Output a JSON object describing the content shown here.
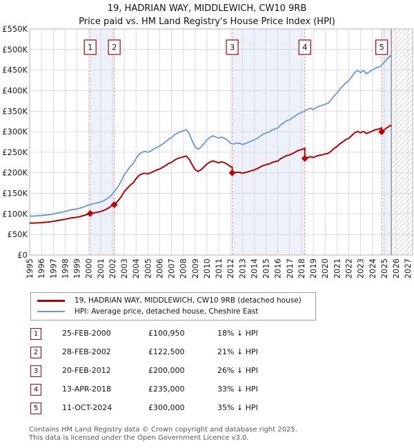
{
  "chart_data": {
    "type": "line",
    "title": "19, HADRIAN WAY, MIDDLEWICH, CW10 9RB",
    "subtitle": "Price paid vs. HM Land Registry's House Price Index (HPI)",
    "xlim": [
      1995,
      2027.4
    ],
    "ylim": [
      0,
      550
    ],
    "grid": true,
    "y_ticks": {
      "values": [
        0,
        50,
        100,
        150,
        200,
        250,
        300,
        350,
        400,
        450,
        500,
        550
      ],
      "labels": [
        "£0",
        "£50K",
        "£100K",
        "£150K",
        "£200K",
        "£250K",
        "£300K",
        "£350K",
        "£400K",
        "£450K",
        "£500K",
        "£550K"
      ]
    },
    "x_ticks": [
      "1995",
      "1996",
      "1997",
      "1998",
      "1999",
      "2000",
      "2001",
      "2002",
      "2003",
      "2004",
      "2005",
      "2006",
      "2007",
      "2008",
      "2009",
      "2010",
      "2011",
      "2012",
      "2013",
      "2014",
      "2015",
      "2016",
      "2017",
      "2018",
      "2019",
      "2020",
      "2021",
      "2022",
      "2023",
      "2024",
      "2025",
      "2026",
      "2027"
    ],
    "legend": [
      "19, HADRIAN WAY, MIDDLEWICH, CW10 9RB (detached house)",
      "HPI: Average price, detached house, Cheshire East"
    ],
    "colors": {
      "property_line": "#b40000",
      "marker": "#c00000",
      "hpi_line": "#6699cc",
      "sale_dash": "#f07d7d",
      "band_fill": "#edf2fa",
      "grid_line": "#d0d0d0",
      "plot_border": "#b3b3b3",
      "hatch_line": "#cccccc",
      "future_edge": "#8a8a8a",
      "number_box_border": "#aa0000"
    },
    "hpi_series": {
      "name": "HPI: Average price, detached house, Cheshire East",
      "units": "GBP_thousands",
      "points": [
        [
          1995.0,
          95
        ],
        [
          1995.25,
          94.5
        ],
        [
          1995.5,
          95
        ],
        [
          1995.75,
          95.5
        ],
        [
          1996.0,
          96
        ],
        [
          1996.25,
          97
        ],
        [
          1996.5,
          97.5
        ],
        [
          1996.75,
          98.5
        ],
        [
          1997.0,
          100
        ],
        [
          1997.25,
          101.5
        ],
        [
          1997.5,
          103
        ],
        [
          1997.75,
          104.5
        ],
        [
          1998.0,
          106
        ],
        [
          1998.25,
          108
        ],
        [
          1998.5,
          110
        ],
        [
          1998.75,
          111
        ],
        [
          1999.0,
          112
        ],
        [
          1999.25,
          114
        ],
        [
          1999.5,
          116.5
        ],
        [
          1999.75,
          119
        ],
        [
          2000.0,
          122
        ],
        [
          2000.25,
          124
        ],
        [
          2000.5,
          125.5
        ],
        [
          2000.75,
          127
        ],
        [
          2001.0,
          129
        ],
        [
          2001.25,
          132
        ],
        [
          2001.5,
          136
        ],
        [
          2001.75,
          141
        ],
        [
          2002.0,
          148
        ],
        [
          2002.25,
          158
        ],
        [
          2002.5,
          168
        ],
        [
          2002.75,
          180
        ],
        [
          2003.0,
          195
        ],
        [
          2003.25,
          205
        ],
        [
          2003.5,
          215
        ],
        [
          2003.75,
          222
        ],
        [
          2004.0,
          235
        ],
        [
          2004.25,
          245
        ],
        [
          2004.5,
          250
        ],
        [
          2004.75,
          252
        ],
        [
          2005.0,
          250
        ],
        [
          2005.25,
          253
        ],
        [
          2005.5,
          258
        ],
        [
          2005.75,
          262
        ],
        [
          2006.0,
          265
        ],
        [
          2006.25,
          270
        ],
        [
          2006.5,
          275
        ],
        [
          2006.75,
          282
        ],
        [
          2007.0,
          285
        ],
        [
          2007.25,
          292
        ],
        [
          2007.5,
          297
        ],
        [
          2007.75,
          300
        ],
        [
          2008.0,
          302
        ],
        [
          2008.25,
          305
        ],
        [
          2008.5,
          295
        ],
        [
          2008.75,
          278
        ],
        [
          2009.0,
          263
        ],
        [
          2009.25,
          257
        ],
        [
          2009.5,
          263
        ],
        [
          2009.75,
          271
        ],
        [
          2010.0,
          280
        ],
        [
          2010.25,
          286
        ],
        [
          2010.5,
          290
        ],
        [
          2010.75,
          287
        ],
        [
          2011.0,
          284
        ],
        [
          2011.25,
          287
        ],
        [
          2011.5,
          284
        ],
        [
          2011.75,
          279
        ],
        [
          2012.0,
          272
        ],
        [
          2012.25,
          270
        ],
        [
          2012.5,
          272
        ],
        [
          2012.75,
          272
        ],
        [
          2013.0,
          269
        ],
        [
          2013.25,
          271
        ],
        [
          2013.5,
          274
        ],
        [
          2013.75,
          277
        ],
        [
          2014.0,
          280
        ],
        [
          2014.25,
          284
        ],
        [
          2014.5,
          289
        ],
        [
          2014.75,
          294
        ],
        [
          2015.0,
          297
        ],
        [
          2015.25,
          299
        ],
        [
          2015.5,
          304
        ],
        [
          2015.75,
          307
        ],
        [
          2016.0,
          309
        ],
        [
          2016.25,
          317
        ],
        [
          2016.5,
          322
        ],
        [
          2016.75,
          327
        ],
        [
          2017.0,
          329
        ],
        [
          2017.25,
          334
        ],
        [
          2017.5,
          339
        ],
        [
          2017.75,
          344
        ],
        [
          2018.0,
          347
        ],
        [
          2018.25,
          350
        ],
        [
          2018.5,
          354
        ],
        [
          2018.75,
          357
        ],
        [
          2019.0,
          354
        ],
        [
          2019.25,
          359
        ],
        [
          2019.5,
          362
        ],
        [
          2019.75,
          364
        ],
        [
          2020.0,
          367
        ],
        [
          2020.25,
          369
        ],
        [
          2020.5,
          377
        ],
        [
          2020.75,
          387
        ],
        [
          2021.0,
          394
        ],
        [
          2021.25,
          404
        ],
        [
          2021.5,
          411
        ],
        [
          2021.75,
          419
        ],
        [
          2022.0,
          424
        ],
        [
          2022.25,
          434
        ],
        [
          2022.5,
          444
        ],
        [
          2022.75,
          449
        ],
        [
          2023.0,
          444
        ],
        [
          2023.25,
          449
        ],
        [
          2023.5,
          441
        ],
        [
          2023.75,
          446
        ],
        [
          2024.0,
          450
        ],
        [
          2024.25,
          455
        ],
        [
          2024.5,
          457
        ],
        [
          2024.75,
          461
        ],
        [
          2025.0,
          469
        ],
        [
          2025.25,
          477
        ],
        [
          2025.5,
          485
        ],
        [
          2025.6,
          483
        ]
      ]
    },
    "property_series": {
      "name": "19, HADRIAN WAY, MIDDLEWICH, CW10 9RB (detached house)",
      "derived": "hpi_times_factor",
      "segments": [
        {
          "from": 1995.0,
          "to": 2002.16,
          "factor": 0.82
        },
        {
          "from": 2002.16,
          "to": 2012.14,
          "factor": 0.79
        },
        {
          "from": 2012.14,
          "to": 2018.28,
          "factor": 0.74
        },
        {
          "from": 2018.28,
          "to": 2024.78,
          "factor": 0.67
        },
        {
          "from": 2024.78,
          "to": 2025.6,
          "factor": 0.65
        }
      ]
    },
    "sales": [
      {
        "label": "1",
        "date": "25-FEB-2000",
        "year": 2000.12,
        "price_k": 100.95,
        "price_display": "£100,950",
        "vs_hpi": "18% ↓ HPI"
      },
      {
        "label": "2",
        "date": "28-FEB-2002",
        "year": 2002.16,
        "price_k": 122.5,
        "price_display": "£122,500",
        "vs_hpi": "21% ↓ HPI"
      },
      {
        "label": "3",
        "date": "20-FEB-2012",
        "year": 2012.14,
        "price_k": 200,
        "price_display": "£200,000",
        "vs_hpi": "26% ↓ HPI"
      },
      {
        "label": "4",
        "date": "13-APR-2018",
        "year": 2018.28,
        "price_k": 235,
        "price_display": "£235,000",
        "vs_hpi": "33% ↓ HPI"
      },
      {
        "label": "5",
        "date": "11-OCT-2024",
        "year": 2024.78,
        "price_k": 300,
        "price_display": "£300,000",
        "vs_hpi": "35% ↓ HPI"
      }
    ],
    "shaded_bands": [
      [
        2000.12,
        2002.16
      ],
      [
        2012.14,
        2018.28
      ],
      [
        2024.78,
        2025.6
      ]
    ],
    "future_hatch": [
      2025.6,
      2027.4
    ]
  },
  "footer": {
    "line1": "Contains HM Land Registry data © Crown copyright and database right 2025.",
    "line2": "This data is licensed under the Open Government Licence v3.0."
  }
}
